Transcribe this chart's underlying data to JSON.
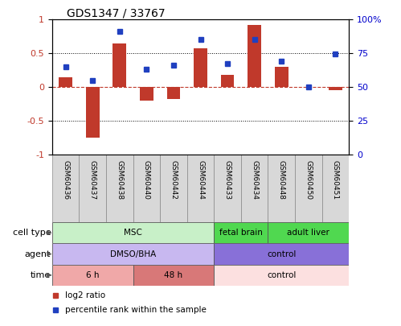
{
  "title": "GDS1347 / 33767",
  "samples": [
    "GSM60436",
    "GSM60437",
    "GSM60438",
    "GSM60440",
    "GSM60442",
    "GSM60444",
    "GSM60433",
    "GSM60434",
    "GSM60448",
    "GSM60450",
    "GSM60451"
  ],
  "log2_ratio": [
    0.15,
    -0.75,
    0.65,
    -0.2,
    -0.17,
    0.57,
    0.18,
    0.92,
    0.3,
    0.0,
    -0.04
  ],
  "percentile_rank": [
    0.3,
    0.1,
    0.82,
    0.27,
    0.32,
    0.7,
    0.35,
    0.71,
    0.38,
    0.0,
    0.49
  ],
  "ylim": [
    -1,
    1
  ],
  "bar_color": "#c0392b",
  "dot_color": "#2040c0",
  "zero_line_color": "#c0392b",
  "bg_color": "#ffffff",
  "plot_bg": "#ffffff",
  "tick_label_color_left": "#c0392b",
  "tick_label_color_right": "#0000cc",
  "cell_type_groups": [
    {
      "label": "MSC",
      "start": 0,
      "end": 5,
      "color": "#c8f0c8"
    },
    {
      "label": "fetal brain",
      "start": 6,
      "end": 7,
      "color": "#50d850"
    },
    {
      "label": "adult liver",
      "start": 8,
      "end": 10,
      "color": "#50d850"
    }
  ],
  "agent_groups": [
    {
      "label": "DMSO/BHA",
      "start": 0,
      "end": 5,
      "color": "#c8b8f0"
    },
    {
      "label": "control",
      "start": 6,
      "end": 10,
      "color": "#8870d8"
    }
  ],
  "time_groups": [
    {
      "label": "6 h",
      "start": 0,
      "end": 2,
      "color": "#f0a8a8"
    },
    {
      "label": "48 h",
      "start": 3,
      "end": 5,
      "color": "#d87878"
    },
    {
      "label": "control",
      "start": 6,
      "end": 10,
      "color": "#fce0e0"
    }
  ],
  "row_labels": [
    "cell type",
    "agent",
    "time"
  ],
  "legend_items": [
    {
      "color": "#c0392b",
      "label": "log2 ratio"
    },
    {
      "color": "#2040c0",
      "label": "percentile rank within the sample"
    }
  ]
}
